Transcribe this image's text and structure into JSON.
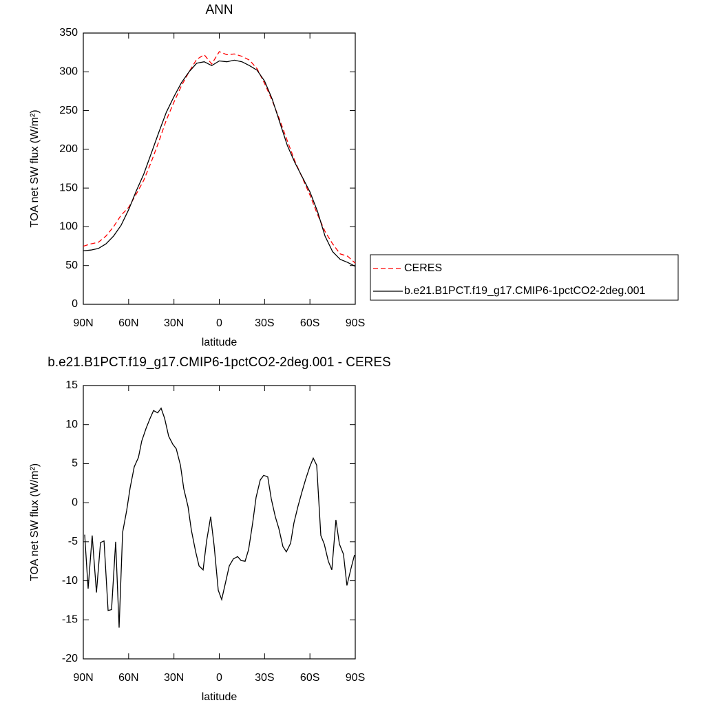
{
  "chart_data": [
    {
      "type": "line",
      "title": "ANN",
      "xlabel": "latitude",
      "ylabel": "TOA net SW flux (W/m²)",
      "x": [
        90,
        85,
        80,
        75,
        70,
        65,
        60,
        55,
        50,
        45,
        40,
        35,
        30,
        25,
        20,
        15,
        10,
        5,
        0,
        -5,
        -10,
        -15,
        -20,
        -25,
        -30,
        -35,
        -40,
        -45,
        -50,
        -55,
        -60,
        -65,
        -70,
        -75,
        -80,
        -85,
        -90
      ],
      "series": [
        {
          "name": "CERES",
          "color": "#ff0000",
          "dashed": true,
          "values": [
            75,
            78,
            80,
            88,
            100,
            115,
            125,
            142,
            160,
            184,
            210,
            238,
            261,
            282,
            300,
            316,
            322,
            310,
            326,
            322,
            323,
            320,
            315,
            304,
            285,
            263,
            238,
            211,
            185,
            163,
            141,
            116,
            94,
            78,
            65,
            62,
            53
          ]
        },
        {
          "name": "b.e21.B1PCT.f19_g17.CMIP6-1pctCO2-2deg.001",
          "color": "#000000",
          "dashed": false,
          "values": [
            69,
            70,
            72,
            78,
            88,
            102,
            122,
            146,
            168,
            195,
            222,
            248,
            268,
            286,
            300,
            311,
            313,
            308,
            314,
            313,
            315,
            313,
            308,
            302,
            288,
            265,
            235,
            205,
            183,
            164,
            145,
            120,
            88,
            68,
            58,
            54,
            49
          ]
        }
      ],
      "xlim": [
        90,
        -90
      ],
      "xticks": [
        {
          "value": 90,
          "label": "90N"
        },
        {
          "value": 60,
          "label": "60N"
        },
        {
          "value": 30,
          "label": "30N"
        },
        0,
        {
          "value": -30,
          "label": "30S"
        },
        {
          "value": -60,
          "label": "60S"
        },
        {
          "value": -90,
          "label": "90S"
        }
      ],
      "ylim": [
        0,
        350
      ],
      "yticks": [
        0,
        50,
        100,
        150,
        200,
        250,
        300,
        350
      ],
      "legend": "right"
    },
    {
      "type": "line",
      "title": "b.e21.B1PCT.f19_g17.CMIP6-1pctCO2-2deg.001 - CERES",
      "xlabel": "latitude",
      "ylabel": "TOA net SW flux (W/m²)",
      "x": [
        89.1,
        86.8,
        84.1,
        81.3,
        78.6,
        76.3,
        73.6,
        71.3,
        68.6,
        66.3,
        64,
        61.3,
        59,
        56.3,
        53.5,
        51.3,
        48.5,
        45.8,
        43.5,
        40.8,
        38.5,
        36.2,
        33.5,
        30.8,
        28.5,
        25.7,
        23.5,
        20.7,
        18.5,
        15.7,
        13.4,
        10.7,
        8.4,
        5.7,
        3.4,
        0.7,
        -1.6,
        -4.3,
        -6.6,
        -9.3,
        -12.1,
        -14.4,
        -17.1,
        -19.4,
        -22.1,
        -24.4,
        -27.1,
        -29.4,
        -32.1,
        -34.4,
        -37.1,
        -39.4,
        -42.1,
        -44.4,
        -47.2,
        -49.4,
        -52.2,
        -54.9,
        -57.2,
        -59.9,
        -62.2,
        -64.5,
        -67.2,
        -69.5,
        -72.2,
        -74.5,
        -77.2,
        -79.5,
        -82.2,
        -84.5,
        -87.2,
        -89.5
      ],
      "values": [
        -4.1,
        -11,
        -4.2,
        -11.5,
        -5.1,
        -4.9,
        -13.8,
        -13.7,
        -5,
        -16,
        -3.8,
        -1,
        1.9,
        4.6,
        5.8,
        7.9,
        9.5,
        10.8,
        11.8,
        11.5,
        12.1,
        10.8,
        8.5,
        7.5,
        6.9,
        4.8,
        1.8,
        -0.5,
        -3.5,
        -6.2,
        -8.1,
        -8.6,
        -4.9,
        -1.8,
        -5.5,
        -11.2,
        -12.4,
        -10.1,
        -8.1,
        -7.2,
        -6.9,
        -7.4,
        -7.5,
        -6,
        -2.6,
        0.7,
        2.9,
        3.5,
        3.3,
        0.5,
        -1.8,
        -3.3,
        -5.6,
        -6.3,
        -5.2,
        -2.6,
        -0.4,
        1.5,
        3,
        4.6,
        5.7,
        4.8,
        -4.2,
        -5.3,
        -7.5,
        -8.6,
        -2.2,
        -5.3,
        -6.6,
        -10.6,
        -8.4,
        -6.7
      ],
      "color": "#000000",
      "xlim": [
        90,
        -90
      ],
      "xticks": [
        {
          "value": 90,
          "label": "90N"
        },
        {
          "value": 60,
          "label": "60N"
        },
        {
          "value": 30,
          "label": "30N"
        },
        0,
        {
          "value": -30,
          "label": "30S"
        },
        {
          "value": -60,
          "label": "60S"
        },
        {
          "value": -90,
          "label": "90S"
        }
      ],
      "ylim": [
        -20,
        15
      ],
      "yticks": [
        -20,
        -15,
        -10,
        -5,
        0,
        5,
        10,
        15
      ]
    }
  ]
}
